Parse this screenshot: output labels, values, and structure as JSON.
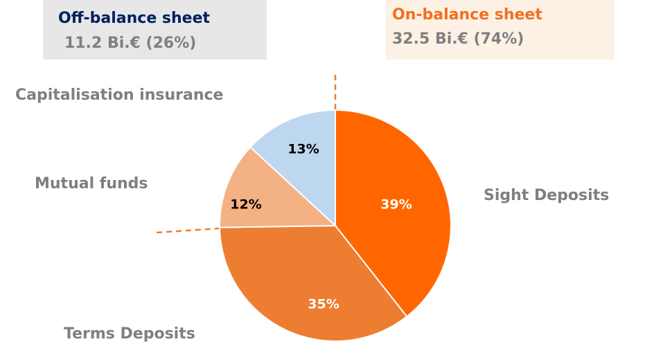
{
  "chart_data": {
    "type": "pie",
    "annotations": [
      {
        "title": "Off-balance sheet",
        "text": "11.2 Bi.€ (26%)"
      },
      {
        "title": "On-balance sheet",
        "text": "32.5 Bi.€ (74%)"
      }
    ],
    "categories": [
      "Sight Deposits",
      "Terms Deposits",
      "Mutual funds",
      "Capitalisation insurance"
    ],
    "values": [
      39,
      35,
      12,
      13
    ],
    "value_labels": [
      "39%",
      "35%",
      "12%",
      "13%"
    ],
    "colors": [
      "#ff6600",
      "#ed7d31",
      "#f4b183",
      "#bdd7ee"
    ]
  }
}
